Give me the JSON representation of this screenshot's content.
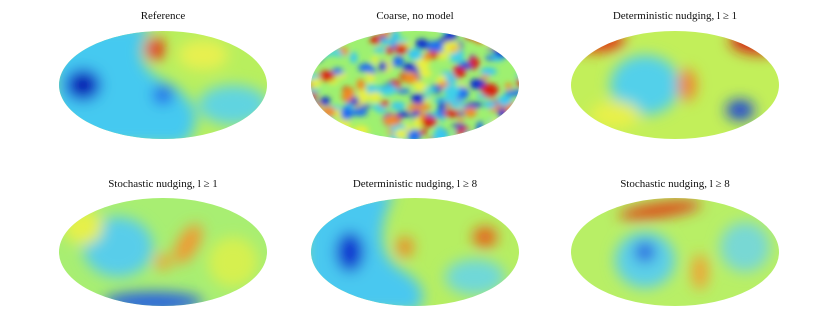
{
  "panels": [
    {
      "title": "Reference"
    },
    {
      "title": "Coarse, no model"
    },
    {
      "title": "Deterministic nudging, l ≥ 1"
    },
    {
      "title": "Stochastic nudging, l ≥ 1"
    },
    {
      "title": "Deterministic nudging, l ≥ 8"
    },
    {
      "title": "Stochastic nudging, l ≥ 8"
    }
  ]
}
